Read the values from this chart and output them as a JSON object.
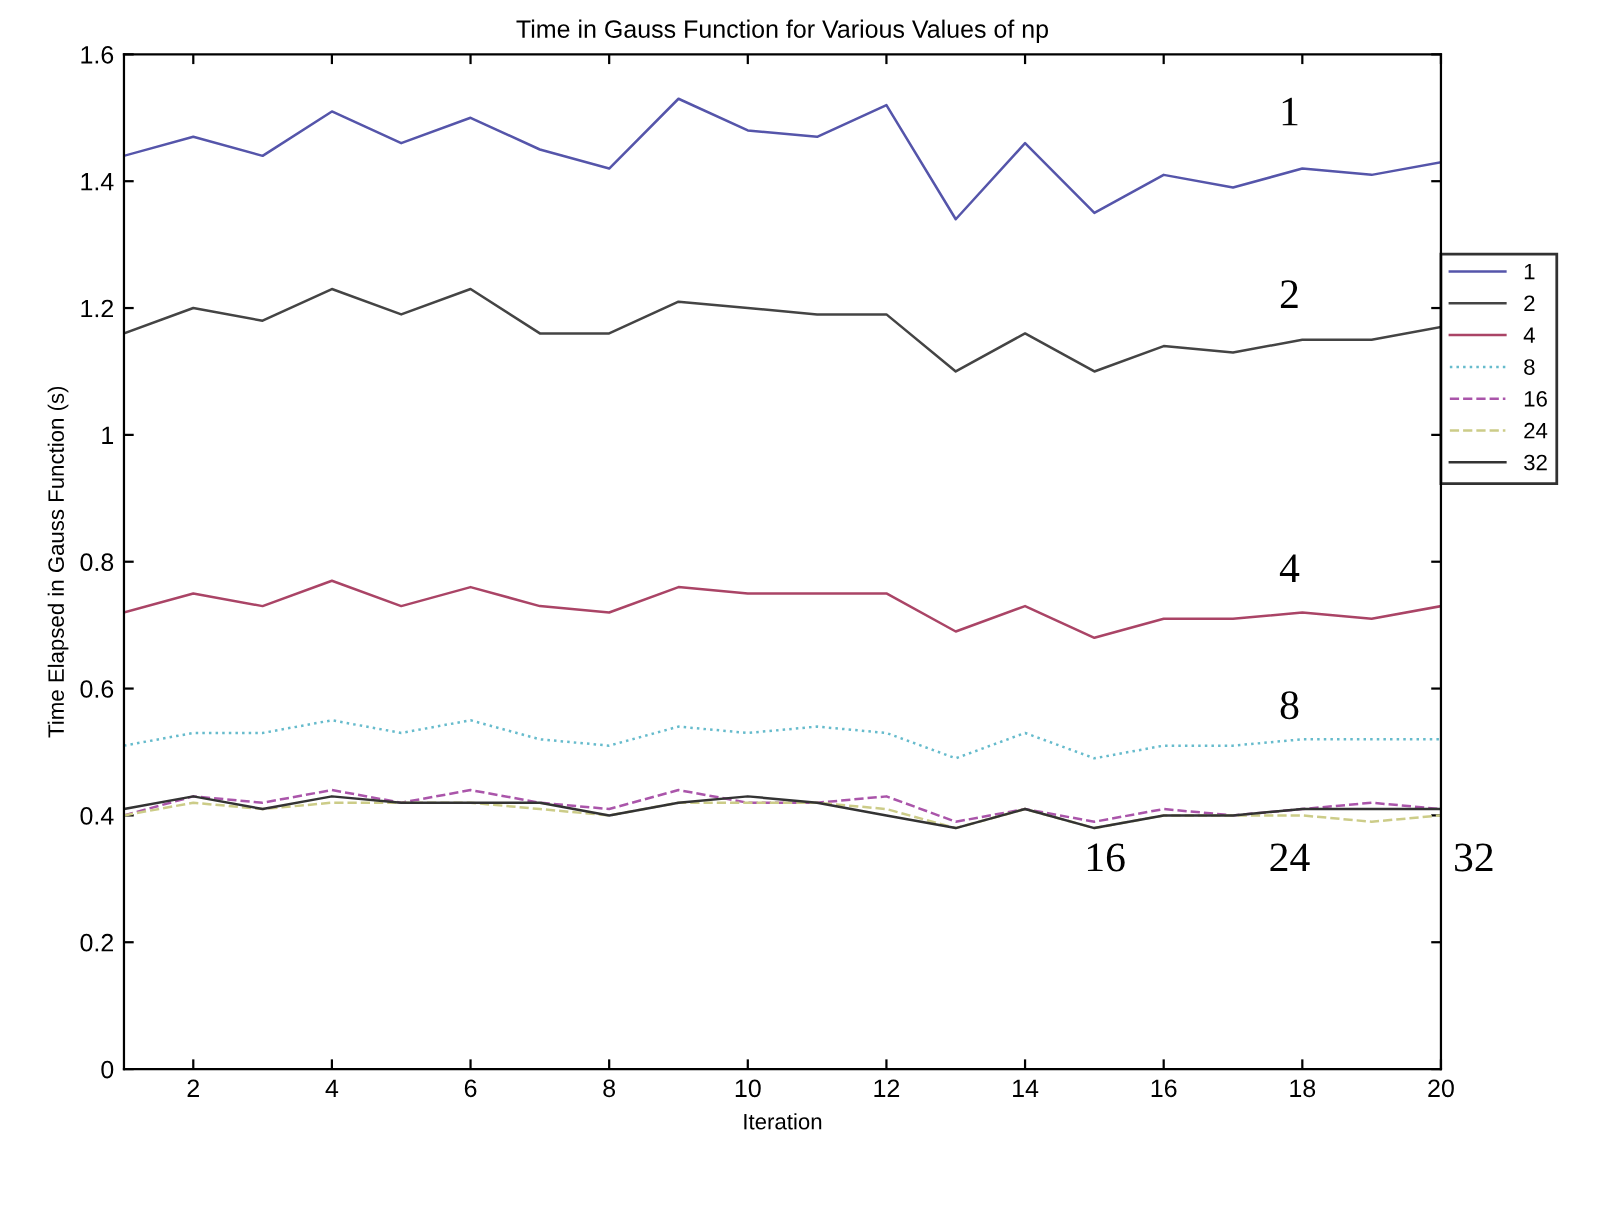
{
  "chart_data": {
    "type": "line",
    "title": "Time in Gauss Function for Various Values of np",
    "xlabel": "Iteration",
    "ylabel": "Time Elapsed in Gauss Function (s)",
    "x": [
      1,
      2,
      3,
      4,
      5,
      6,
      7,
      8,
      9,
      10,
      11,
      12,
      13,
      14,
      15,
      16,
      17,
      18,
      19,
      20
    ],
    "series": [
      {
        "name": "1",
        "color": "#5555aa",
        "line_style": "solid",
        "values": [
          1.44,
          1.47,
          1.44,
          1.51,
          1.46,
          1.5,
          1.45,
          1.42,
          1.53,
          1.48,
          1.47,
          1.52,
          1.34,
          1.46,
          1.35,
          1.41,
          1.39,
          1.42,
          1.41,
          1.43
        ]
      },
      {
        "name": "2",
        "color": "#444444",
        "line_style": "solid",
        "values": [
          1.16,
          1.2,
          1.18,
          1.23,
          1.19,
          1.23,
          1.16,
          1.16,
          1.21,
          1.2,
          1.19,
          1.19,
          1.1,
          1.16,
          1.1,
          1.14,
          1.13,
          1.15,
          1.15,
          1.17
        ]
      },
      {
        "name": "4",
        "color": "#aa4466",
        "line_style": "solid",
        "values": [
          0.72,
          0.75,
          0.73,
          0.77,
          0.73,
          0.76,
          0.73,
          0.72,
          0.76,
          0.75,
          0.75,
          0.75,
          0.69,
          0.73,
          0.68,
          0.71,
          0.71,
          0.72,
          0.71,
          0.73
        ]
      },
      {
        "name": "8",
        "color": "#66bbcc",
        "line_style": "dotted",
        "values": [
          0.51,
          0.53,
          0.53,
          0.55,
          0.53,
          0.55,
          0.52,
          0.51,
          0.54,
          0.53,
          0.54,
          0.53,
          0.49,
          0.53,
          0.49,
          0.51,
          0.51,
          0.52,
          0.52,
          0.52
        ]
      },
      {
        "name": "16",
        "color": "#aa55aa",
        "line_style": "dashed",
        "values": [
          0.4,
          0.43,
          0.42,
          0.44,
          0.42,
          0.44,
          0.42,
          0.41,
          0.44,
          0.42,
          0.42,
          0.43,
          0.39,
          0.41,
          0.39,
          0.41,
          0.4,
          0.41,
          0.42,
          0.41
        ]
      },
      {
        "name": "24",
        "color": "#cccc88",
        "line_style": "dashed",
        "values": [
          0.4,
          0.42,
          0.41,
          0.42,
          0.42,
          0.42,
          0.41,
          0.4,
          0.42,
          0.42,
          0.42,
          0.41,
          0.38,
          0.41,
          0.38,
          0.4,
          0.4,
          0.4,
          0.39,
          0.4
        ]
      },
      {
        "name": "32",
        "color": "#333333",
        "line_style": "solid",
        "values": [
          0.41,
          0.43,
          0.41,
          0.43,
          0.42,
          0.42,
          0.42,
          0.4,
          0.42,
          0.43,
          0.42,
          0.4,
          0.38,
          0.41,
          0.38,
          0.4,
          0.4,
          0.41,
          0.41,
          0.41
        ]
      }
    ],
    "annotations": [
      "1",
      "2",
      "4",
      "8",
      "16",
      "24",
      "32"
    ],
    "xlim": [
      1,
      20
    ],
    "xticks": [
      2,
      4,
      6,
      8,
      10,
      12,
      14,
      16,
      18,
      20
    ],
    "ylim": [
      0,
      1.6
    ],
    "yticks": [
      0,
      0.2,
      0.4,
      0.6,
      0.8,
      1,
      1.2,
      1.4,
      1.6
    ],
    "grid": false,
    "legend": "right",
    "marker": "none"
  }
}
